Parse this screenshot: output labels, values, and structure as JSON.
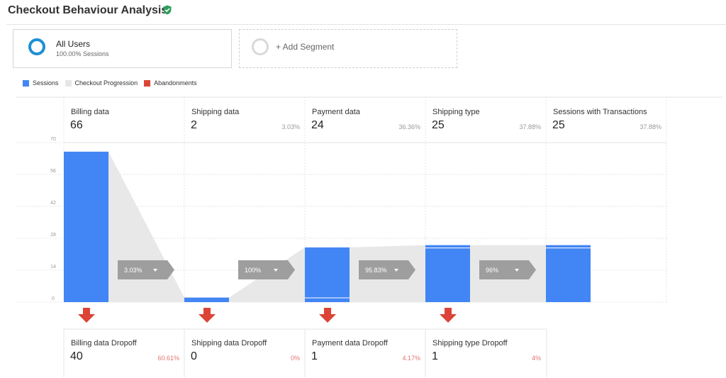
{
  "header": {
    "title": "Checkout Behaviour Analysis",
    "verified_icon": "verified-shield-icon"
  },
  "segments": {
    "all_users": {
      "name": "All Users",
      "sub": "100.00% Sessions"
    },
    "add_segment": {
      "label": "+ Add Segment"
    }
  },
  "legend": [
    {
      "label": "Sessions",
      "color": "#4285f4"
    },
    {
      "label": "Checkout Progression",
      "color": "#e6e6e6"
    },
    {
      "label": "Abandonments",
      "color": "#db4437"
    }
  ],
  "chart_data": {
    "type": "bar",
    "categories": [
      "Billing data",
      "Shipping data",
      "Payment data",
      "Shipping type",
      "Sessions with Transactions"
    ],
    "values": [
      66,
      2,
      24,
      25,
      25
    ],
    "step_percents": [
      "",
      "3.03%",
      "36.36%",
      "37.88%",
      "37.88%"
    ],
    "yticks": [
      "70",
      "56",
      "42",
      "28",
      "14",
      "0"
    ],
    "ylim": [
      0,
      70
    ],
    "progression": [
      "3.03%",
      "100%",
      "95.83%",
      "96%"
    ],
    "dropoffs": [
      {
        "label": "Billing data Dropoff",
        "value": "40",
        "pct": "60.61%"
      },
      {
        "label": "Shipping data Dropoff",
        "value": "0",
        "pct": "0%"
      },
      {
        "label": "Payment data Dropoff",
        "value": "1",
        "pct": "4.17%"
      },
      {
        "label": "Shipping type Dropoff",
        "value": "1",
        "pct": "4%"
      }
    ],
    "grid": true,
    "colors": {
      "bar": "#4285f4",
      "progression": "#e8e8e8",
      "abandon": "#db4437",
      "badge": "#9e9e9e"
    }
  }
}
